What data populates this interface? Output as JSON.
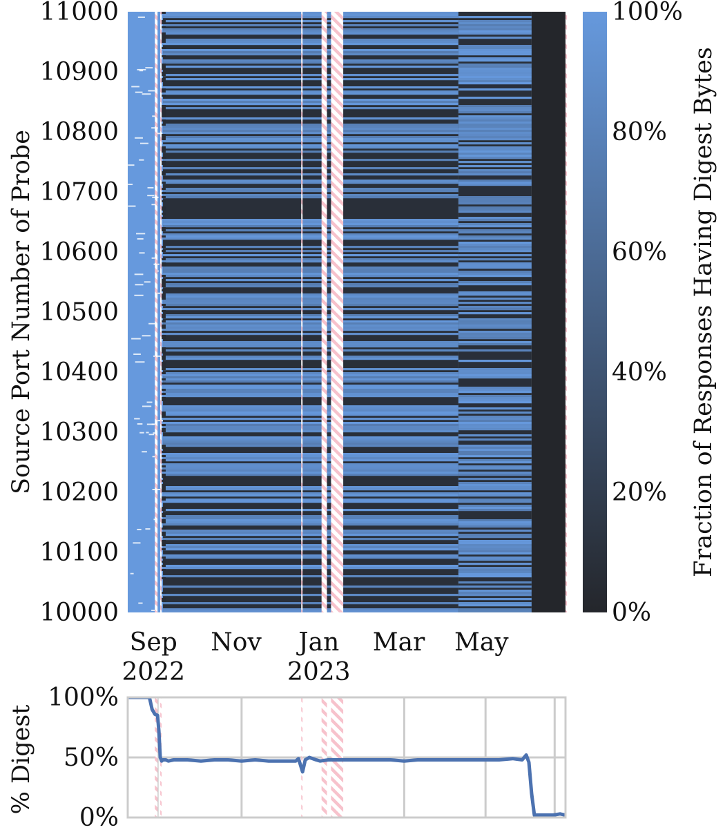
{
  "chart_data": [
    {
      "type": "heatmap",
      "title": "",
      "xlabel": "",
      "ylabel": "Source Port Number of Probe",
      "colorbar_label": "Fraction of Responses Having Digest Bytes",
      "colorbar_ticks": [
        "0%",
        "20%",
        "40%",
        "60%",
        "80%",
        "100%"
      ],
      "colorbar_range": [
        0,
        1
      ],
      "colormap": {
        "low": "#24262b",
        "high": "#6699dd"
      },
      "y_ticks": [
        10000,
        10100,
        10200,
        10300,
        10400,
        10500,
        10600,
        10700,
        10800,
        10900,
        11000
      ],
      "ylim": [
        10000,
        11000
      ],
      "x_tick_labels": [
        {
          "month": "Sep",
          "year": "2022",
          "day": 5
        },
        {
          "month": "Nov",
          "year": "",
          "day": 66
        },
        {
          "month": "Jan",
          "year": "2023",
          "day": 127
        },
        {
          "month": "Mar",
          "year": "",
          "day": 186
        },
        {
          "month": "May",
          "year": "",
          "day": 247
        }
      ],
      "x_range_days": [
        -14,
        309
      ],
      "date_origin": "2022-09-01",
      "gap_periods_days": [
        [
          6,
          8
        ],
        [
          10,
          11
        ],
        [
          114,
          115
        ],
        [
          129,
          133
        ],
        [
          136,
          145
        ],
        [
          309,
          310
        ]
      ],
      "gap_style": "pink hatched (no data)",
      "phases": [
        {
          "from_day": -14,
          "to_day": 12,
          "fraction": 1.0,
          "description": "all ports answer with digest"
        },
        {
          "from_day": 12,
          "to_day": 230,
          "fraction": 0.48,
          "description": "roughly half the port rows have digest"
        },
        {
          "from_day": 230,
          "to_day": 284,
          "fraction": 0.48,
          "description": "mixed, lighter band pattern"
        },
        {
          "from_day": 284,
          "to_day": 309,
          "fraction": 0.0,
          "description": "no digest"
        }
      ]
    },
    {
      "type": "line",
      "title": "",
      "xlabel": "",
      "ylabel": "% Digest",
      "ylim": [
        0,
        100
      ],
      "y_ticks": [
        "0%",
        "50%",
        "100%"
      ],
      "color": "#4c72b0",
      "x": [
        -14,
        -2,
        2,
        4,
        6,
        8,
        9,
        10,
        11,
        12,
        14,
        16,
        20,
        30,
        40,
        50,
        60,
        70,
        80,
        90,
        100,
        110,
        112,
        115,
        117,
        120,
        125,
        128,
        134,
        146,
        160,
        170,
        180,
        190,
        200,
        210,
        220,
        230,
        240,
        250,
        260,
        270,
        277,
        280,
        282,
        284,
        286,
        288,
        290,
        300,
        305,
        309
      ],
      "values": [
        100,
        100,
        100,
        90,
        86,
        85,
        72,
        50,
        47,
        48,
        48,
        47,
        48,
        48,
        47,
        48,
        48,
        47,
        48,
        47,
        47,
        47,
        49,
        38,
        48,
        50,
        48,
        47,
        48,
        48,
        48,
        48,
        48,
        47,
        48,
        48,
        48,
        48,
        48,
        48,
        48,
        49,
        48,
        52,
        46,
        20,
        2,
        2,
        2,
        2,
        3,
        2
      ]
    }
  ]
}
